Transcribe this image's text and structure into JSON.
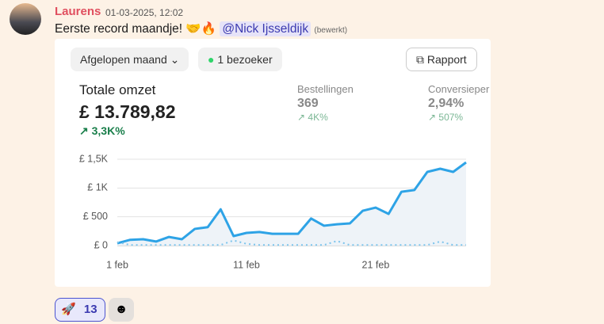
{
  "message": {
    "author": "Laurens",
    "timestamp": "01-03-2025, 12:02",
    "text": "Eerste record maandje!",
    "emojis": "🤝🔥",
    "mention": "@Nick Ijsseldijk",
    "edited": "(bewerkt)"
  },
  "card": {
    "period_button": "Afgelopen maand",
    "visitors": "1 bezoeker",
    "report_button": "Rapport",
    "metrics": [
      {
        "label": "Totale omzet",
        "value": "£ 13.789,82",
        "change": "3,3K%"
      },
      {
        "label": "Bestellingen",
        "value": "369",
        "change": "4K%"
      },
      {
        "label": "Conversieper",
        "value": "2,94%",
        "change": "507%"
      }
    ]
  },
  "chart_data": {
    "type": "line",
    "categories": [
      "1 feb",
      null,
      null,
      null,
      null,
      null,
      null,
      null,
      null,
      null,
      "11 feb",
      null,
      null,
      null,
      null,
      null,
      null,
      null,
      null,
      null,
      "21 feb",
      null,
      null,
      null,
      null,
      null,
      null,
      null
    ],
    "series": [
      {
        "color": "#2ea3e6",
        "values": [
          40,
          100,
          110,
          70,
          150,
          110,
          290,
          320,
          630,
          165,
          220,
          235,
          205,
          205,
          205,
          470,
          345,
          370,
          385,
          605,
          660,
          550,
          935,
          965,
          1280,
          1335,
          1280,
          1445
        ]
      },
      {
        "color": "#7cc4ec",
        "values": [
          60,
          10,
          10,
          10,
          10,
          10,
          10,
          10,
          10,
          90,
          30,
          10,
          10,
          10,
          10,
          10,
          10,
          80,
          10,
          10,
          10,
          10,
          10,
          10,
          10,
          70,
          10,
          10
        ]
      }
    ],
    "ylim": [
      0,
      1500
    ],
    "yticks": [
      {
        "value": 0,
        "label": "£ 0"
      },
      {
        "value": 500,
        "label": "£ 500"
      },
      {
        "value": 1000,
        "label": "£ 1K"
      },
      {
        "value": 1500,
        "label": "£ 1,5K"
      }
    ],
    "grid": true
  },
  "reactions": [
    {
      "emoji": "🚀",
      "count": "13"
    }
  ]
}
